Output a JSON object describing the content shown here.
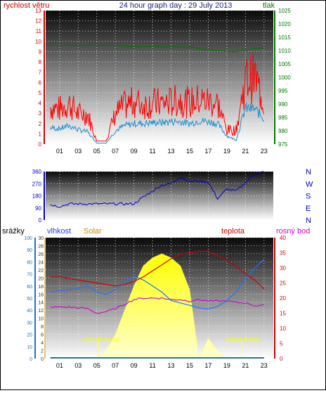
{
  "title": "24 hour graph day : 29 July 2013",
  "colors": {
    "wind": "#ff0000",
    "pressure": "#007700",
    "gust": "#1a8fd0",
    "direction": "#0000cc",
    "rain": "#1e73be",
    "humidity": "#1e73ff",
    "solar": "#ffff00",
    "temp": "#cc0000",
    "dew": "#cc00cc",
    "label_solar": "#cc8800"
  },
  "panel_top": {
    "left_label": "rychlost větru",
    "right_label": "tlak",
    "left_ticks": [
      "0",
      "1",
      "2",
      "3",
      "4",
      "5",
      "6",
      "7",
      "8",
      "9",
      "10",
      "11",
      "12",
      "13"
    ],
    "right_ticks": [
      "975",
      "980",
      "985",
      "990",
      "995",
      "1000",
      "1005",
      "1010",
      "1015",
      "1020",
      "1025"
    ]
  },
  "panel_mid": {
    "left_ticks": [
      "0",
      "90",
      "180",
      "270",
      "360"
    ],
    "compass": [
      "N",
      "W",
      "S",
      "E",
      "N"
    ]
  },
  "panel_bot": {
    "labels": [
      "srážky",
      "vlhkost",
      "Solar",
      "teplota",
      "rosný bod"
    ],
    "left1_ticks": [
      "0",
      "10",
      "20",
      "30",
      "40",
      "50",
      "60",
      "70",
      "80",
      "90",
      "100"
    ],
    "left2_ticks": [
      "0",
      "2",
      "4",
      "6",
      "8",
      "10",
      "12",
      "14",
      "16",
      "18",
      "20",
      "22",
      "24",
      "26",
      "28",
      "30"
    ],
    "right_ticks": [
      "0",
      "5",
      "10",
      "15",
      "20",
      "25",
      "30",
      "35",
      "40"
    ],
    "annotations": {
      "sunrise": "východ slunce",
      "sunset": "západ slunce"
    }
  },
  "x_ticks": [
    "01",
    "03",
    "05",
    "07",
    "09",
    "11",
    "13",
    "15",
    "17",
    "19",
    "21",
    "23"
  ],
  "chart_data": [
    {
      "type": "line",
      "title": "24 hour graph day : 29 July 2013",
      "ylabel": "rychlost větru",
      "y2label": "tlak",
      "ylim": [
        0,
        13
      ],
      "y2lim": [
        975,
        1025
      ],
      "x": [
        "00",
        "01",
        "02",
        "03",
        "04",
        "05",
        "06",
        "07",
        "08",
        "09",
        "10",
        "11",
        "12",
        "13",
        "14",
        "15",
        "16",
        "17",
        "18",
        "19",
        "20",
        "21",
        "22",
        "23"
      ],
      "series": [
        {
          "name": "rychlost větru",
          "axis": "left",
          "values": [
            3.2,
            3.0,
            3.5,
            2.6,
            2.6,
            0.3,
            0.3,
            2.6,
            3.3,
            3.6,
            3.4,
            3.5,
            3.5,
            3.6,
            3.8,
            3.5,
            3.8,
            3.7,
            3.5,
            1.2,
            1.2,
            5.5,
            5.8,
            3.5
          ]
        },
        {
          "name": "gust",
          "axis": "left",
          "values": [
            1.6,
            1.5,
            1.8,
            1.4,
            1.2,
            0.1,
            0.1,
            1.3,
            1.8,
            2.0,
            2.0,
            2.1,
            2.1,
            2.2,
            2.2,
            2.0,
            2.3,
            2.2,
            2.0,
            0.8,
            0.4,
            3.5,
            3.4,
            2.5
          ]
        },
        {
          "name": "tlak",
          "axis": "right",
          "values": [
            1012,
            1012,
            1012,
            1012,
            1012,
            1012,
            1012,
            1012,
            1011.6,
            1011.5,
            1011.5,
            1011.5,
            1011.4,
            1011.4,
            1011.4,
            1011.3,
            1010.8,
            1010.3,
            1010.1,
            1009.8,
            1009.7,
            1010.2,
            1010.8,
            1011
          ]
        }
      ]
    },
    {
      "type": "line",
      "ylim": [
        0,
        360
      ],
      "x": [
        "00",
        "01",
        "02",
        "03",
        "04",
        "05",
        "06",
        "07",
        "08",
        "09",
        "10",
        "11",
        "12",
        "13",
        "14",
        "15",
        "16",
        "17",
        "18",
        "19",
        "20",
        "21",
        "22",
        "23"
      ],
      "series": [
        {
          "values": [
            115,
            100,
            120,
            120,
            120,
            120,
            120,
            120,
            120,
            120,
            170,
            215,
            260,
            270,
            320,
            285,
            290,
            280,
            160,
            230,
            215,
            280,
            340,
            360
          ]
        }
      ]
    },
    {
      "type": "area",
      "x": [
        "00",
        "01",
        "02",
        "03",
        "04",
        "05",
        "06",
        "07",
        "08",
        "09",
        "10",
        "11",
        "12",
        "13",
        "14",
        "15",
        "16",
        "17",
        "18",
        "19",
        "20",
        "21",
        "22",
        "23"
      ],
      "series": [
        {
          "name": "srážky",
          "axis": "left1",
          "values": [
            0,
            0,
            0,
            0,
            0,
            0,
            0,
            0,
            0,
            0,
            0,
            0,
            0,
            0,
            0,
            0,
            0,
            0,
            0,
            0,
            0,
            0,
            0,
            0
          ]
        },
        {
          "name": "vlhkost",
          "axis": "left1",
          "values": [
            55,
            56,
            57,
            58,
            60,
            55,
            53,
            57,
            63,
            68,
            65,
            60,
            55,
            48,
            46,
            44,
            42,
            41,
            43,
            48,
            55,
            66,
            75,
            82
          ]
        },
        {
          "name": "Solar",
          "axis": "left2",
          "values": [
            0,
            0,
            0,
            0,
            0,
            0,
            2,
            6,
            12,
            18,
            23,
            25,
            26,
            25,
            23,
            17,
            0,
            5,
            2,
            0,
            0,
            0,
            0,
            0
          ]
        },
        {
          "name": "teplota",
          "axis": "right",
          "values": [
            27,
            27,
            26.5,
            26,
            25.5,
            25,
            24.5,
            24,
            24.5,
            25.5,
            27,
            29,
            31,
            33,
            34.5,
            35,
            35.5,
            35.5,
            34,
            32.5,
            30.5,
            28,
            26,
            23
          ]
        },
        {
          "name": "rosný bod",
          "axis": "right",
          "values": [
            17,
            17,
            17,
            16.8,
            16.5,
            15,
            15.5,
            16.5,
            18,
            19.5,
            20,
            20,
            20,
            19.5,
            19.5,
            19,
            19.5,
            19,
            19,
            19,
            18.5,
            18.5,
            17.5,
            17.5
          ]
        }
      ]
    }
  ]
}
